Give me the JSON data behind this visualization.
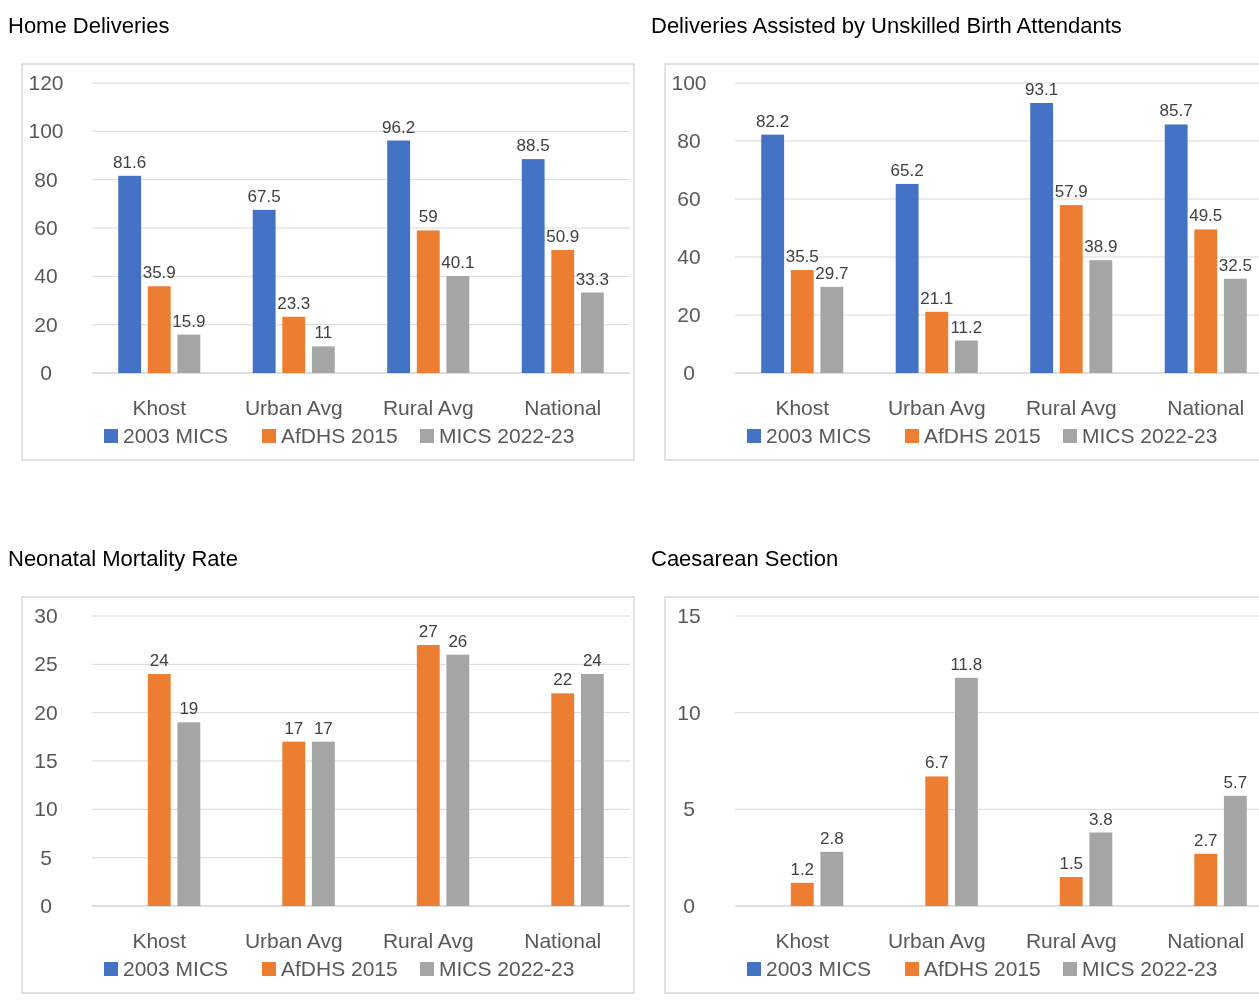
{
  "chart_data": [
    {
      "type": "bar",
      "title": "Home Deliveries",
      "categories": [
        "Khost",
        "Urban Avg",
        "Rural Avg",
        "National"
      ],
      "series": [
        {
          "name": "2003 MICS",
          "color": "#4472c4",
          "values": [
            81.6,
            67.5,
            96.2,
            88.5
          ]
        },
        {
          "name": "AfDHS 2015",
          "color": "#ed7d31",
          "values": [
            35.9,
            23.3,
            59,
            50.9
          ]
        },
        {
          "name": "MICS 2022-23",
          "color": "#a5a5a5",
          "values": [
            15.9,
            11,
            40.1,
            33.3
          ]
        }
      ],
      "ylim": [
        0,
        120
      ],
      "yticks": [
        0,
        20,
        40,
        60,
        80,
        100,
        120
      ],
      "grid": "y",
      "legend": "bottom",
      "data_labels": true
    },
    {
      "type": "bar",
      "title": "Deliveries Assisted by Unskilled Birth Attendants",
      "categories": [
        "Khost",
        "Urban Avg",
        "Rural Avg",
        "National"
      ],
      "series": [
        {
          "name": "2003 MICS",
          "color": "#4472c4",
          "values": [
            82.2,
            65.2,
            93.1,
            85.7
          ]
        },
        {
          "name": "AfDHS 2015",
          "color": "#ed7d31",
          "values": [
            35.5,
            21.1,
            57.9,
            49.5
          ]
        },
        {
          "name": "MICS 2022-23",
          "color": "#a5a5a5",
          "values": [
            29.7,
            11.2,
            38.9,
            32.5
          ]
        }
      ],
      "ylim": [
        0,
        100
      ],
      "yticks": [
        0,
        20,
        40,
        60,
        80,
        100
      ],
      "grid": "y",
      "legend": "bottom",
      "data_labels": true
    },
    {
      "type": "bar",
      "title": "Neonatal Mortality Rate",
      "categories": [
        "Khost",
        "Urban Avg",
        "Rural Avg",
        "National"
      ],
      "series": [
        {
          "name": "2003 MICS",
          "color": "#4472c4",
          "values": [
            null,
            null,
            null,
            null
          ]
        },
        {
          "name": "AfDHS 2015",
          "color": "#ed7d31",
          "values": [
            24,
            17,
            27,
            22
          ]
        },
        {
          "name": "MICS 2022-23",
          "color": "#a5a5a5",
          "values": [
            19,
            17,
            26,
            24
          ]
        }
      ],
      "ylim": [
        0,
        30
      ],
      "yticks": [
        0,
        5,
        10,
        15,
        20,
        25,
        30
      ],
      "grid": "y",
      "legend": "bottom",
      "data_labels": true
    },
    {
      "type": "bar",
      "title": "Caesarean Section",
      "categories": [
        "Khost",
        "Urban Avg",
        "Rural Avg",
        "National"
      ],
      "series": [
        {
          "name": "2003 MICS",
          "color": "#4472c4",
          "values": [
            null,
            null,
            null,
            null
          ]
        },
        {
          "name": "AfDHS 2015",
          "color": "#ed7d31",
          "values": [
            1.2,
            6.7,
            1.5,
            2.7
          ]
        },
        {
          "name": "MICS 2022-23",
          "color": "#a5a5a5",
          "values": [
            2.8,
            11.8,
            3.8,
            5.7
          ]
        }
      ],
      "ylim": [
        0,
        15
      ],
      "yticks": [
        0,
        5,
        10,
        15
      ],
      "grid": "y",
      "legend": "bottom",
      "data_labels": true
    }
  ]
}
